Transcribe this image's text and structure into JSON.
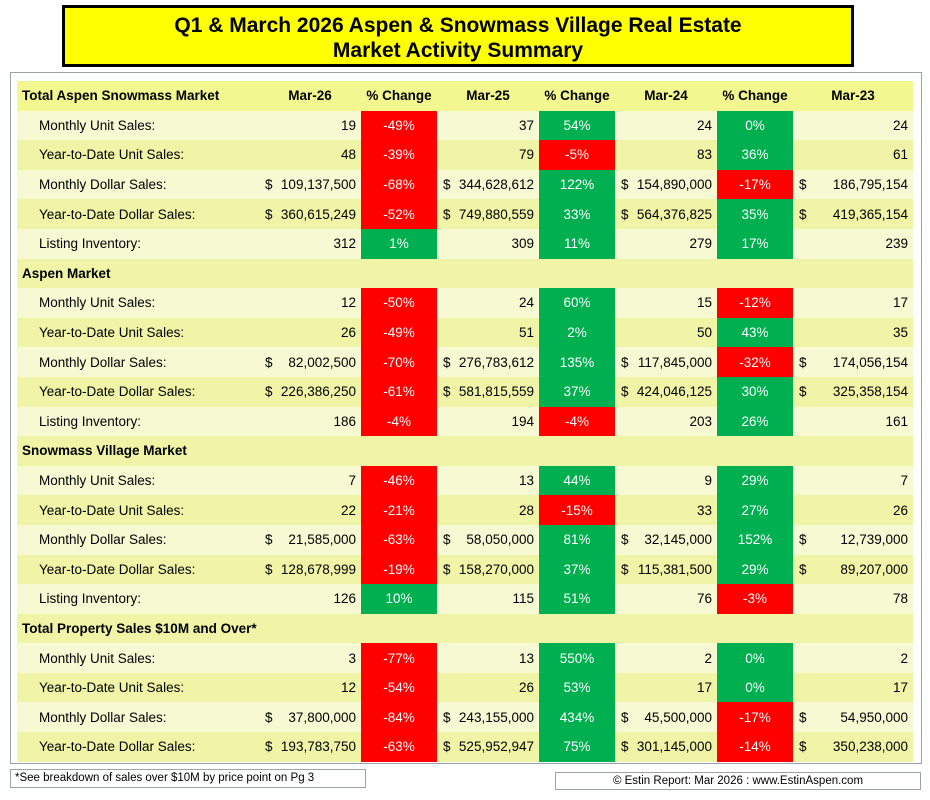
{
  "title": {
    "line1": "Q1 & March 2026 Aspen & Snowmass Village Real Estate",
    "line2": "Market Activity Summary"
  },
  "header": {
    "label": "Total Aspen Snowmass Market",
    "columns": [
      "Mar-26",
      "% Change",
      "Mar-25",
      "% Change",
      "Mar-24",
      "% Change",
      "Mar-23"
    ]
  },
  "colors": {
    "title_bg": "#ffff00",
    "negative": "#ff0000",
    "positive": "#00b050"
  },
  "sections": [
    {
      "name": "",
      "rows": [
        {
          "label": "Monthly Unit Sales:",
          "dollar": false,
          "v26": "19",
          "c1": "-49%",
          "v25": "37",
          "c2": "54%",
          "v24": "24",
          "c3": "0%",
          "v23": "24"
        },
        {
          "label": "Year-to-Date Unit Sales:",
          "dollar": false,
          "v26": "48",
          "c1": "-39%",
          "v25": "79",
          "c2": "-5%",
          "v24": "83",
          "c3": "36%",
          "v23": "61"
        },
        {
          "label": "Monthly Dollar Sales:",
          "dollar": true,
          "v26": "109,137,500",
          "c1": "-68%",
          "v25": "344,628,612",
          "c2": "122%",
          "v24": "154,890,000",
          "c3": "-17%",
          "v23": "186,795,154"
        },
        {
          "label": "Year-to-Date Dollar Sales:",
          "dollar": true,
          "v26": "360,615,249",
          "c1": "-52%",
          "v25": "749,880,559",
          "c2": "33%",
          "v24": "564,376,825",
          "c3": "35%",
          "v23": "419,365,154"
        },
        {
          "label": "Listing Inventory:",
          "dollar": false,
          "v26": "312",
          "c1": "1%",
          "v25": "309",
          "c2": "11%",
          "v24": "279",
          "c3": "17%",
          "v23": "239"
        }
      ]
    },
    {
      "name": "Aspen Market",
      "rows": [
        {
          "label": "Monthly Unit Sales:",
          "dollar": false,
          "v26": "12",
          "c1": "-50%",
          "v25": "24",
          "c2": "60%",
          "v24": "15",
          "c3": "-12%",
          "v23": "17"
        },
        {
          "label": "Year-to-Date Unit Sales:",
          "dollar": false,
          "v26": "26",
          "c1": "-49%",
          "v25": "51",
          "c2": "2%",
          "v24": "50",
          "c3": "43%",
          "v23": "35"
        },
        {
          "label": "Monthly Dollar Sales:",
          "dollar": true,
          "v26": "82,002,500",
          "c1": "-70%",
          "v25": "276,783,612",
          "c2": "135%",
          "v24": "117,845,000",
          "c3": "-32%",
          "v23": "174,056,154"
        },
        {
          "label": "Year-to-Date Dollar Sales:",
          "dollar": true,
          "v26": "226,386,250",
          "c1": "-61%",
          "v25": "581,815,559",
          "c2": "37%",
          "v24": "424,046,125",
          "c3": "30%",
          "v23": "325,358,154"
        },
        {
          "label": "Listing Inventory:",
          "dollar": false,
          "v26": "186",
          "c1": "-4%",
          "v25": "194",
          "c2": "-4%",
          "v24": "203",
          "c3": "26%",
          "v23": "161"
        }
      ]
    },
    {
      "name": "Snowmass Village Market",
      "rows": [
        {
          "label": "Monthly Unit Sales:",
          "dollar": false,
          "v26": "7",
          "c1": "-46%",
          "v25": "13",
          "c2": "44%",
          "v24": "9",
          "c3": "29%",
          "v23": "7"
        },
        {
          "label": "Year-to-Date Unit Sales:",
          "dollar": false,
          "v26": "22",
          "c1": "-21%",
          "v25": "28",
          "c2": "-15%",
          "v24": "33",
          "c3": "27%",
          "v23": "26"
        },
        {
          "label": "Monthly Dollar Sales:",
          "dollar": true,
          "v26": "21,585,000",
          "c1": "-63%",
          "v25": "58,050,000",
          "c2": "81%",
          "v24": "32,145,000",
          "c3": "152%",
          "v23": "12,739,000"
        },
        {
          "label": "Year-to-Date Dollar Sales:",
          "dollar": true,
          "v26": "128,678,999",
          "c1": "-19%",
          "v25": "158,270,000",
          "c2": "37%",
          "v24": "115,381,500",
          "c3": "29%",
          "v23": "89,207,000"
        },
        {
          "label": "Listing Inventory:",
          "dollar": false,
          "v26": "126",
          "c1": "10%",
          "v25": "115",
          "c2": "51%",
          "v24": "76",
          "c3": "-3%",
          "v23": "78"
        }
      ]
    },
    {
      "name": "Total Property Sales $10M and Over*",
      "rows": [
        {
          "label": "Monthly Unit Sales:",
          "dollar": false,
          "v26": "3",
          "c1": "-77%",
          "v25": "13",
          "c2": "550%",
          "v24": "2",
          "c3": "0%",
          "v23": "2"
        },
        {
          "label": "Year-to-Date Unit Sales:",
          "dollar": false,
          "v26": "12",
          "c1": "-54%",
          "v25": "26",
          "c2": "53%",
          "v24": "17",
          "c3": "0%",
          "v23": "17"
        },
        {
          "label": "Monthly Dollar Sales:",
          "dollar": true,
          "v26": "37,800,000",
          "c1": "-84%",
          "v25": "243,155,000",
          "c2": "434%",
          "v24": "45,500,000",
          "c3": "-17%",
          "v23": "54,950,000"
        },
        {
          "label": "Year-to-Date Dollar Sales:",
          "dollar": true,
          "v26": "193,783,750",
          "c1": "-63%",
          "v25": "525,952,947",
          "c2": "75%",
          "v24": "301,145,000",
          "c3": "-14%",
          "v23": "350,238,000"
        }
      ]
    }
  ],
  "dollar_sign": "$",
  "footnote": "*See breakdown of sales over $10M by price point on Pg 3",
  "credit": "© Estin Report: Mar 2026 : www.EstinAspen.com"
}
